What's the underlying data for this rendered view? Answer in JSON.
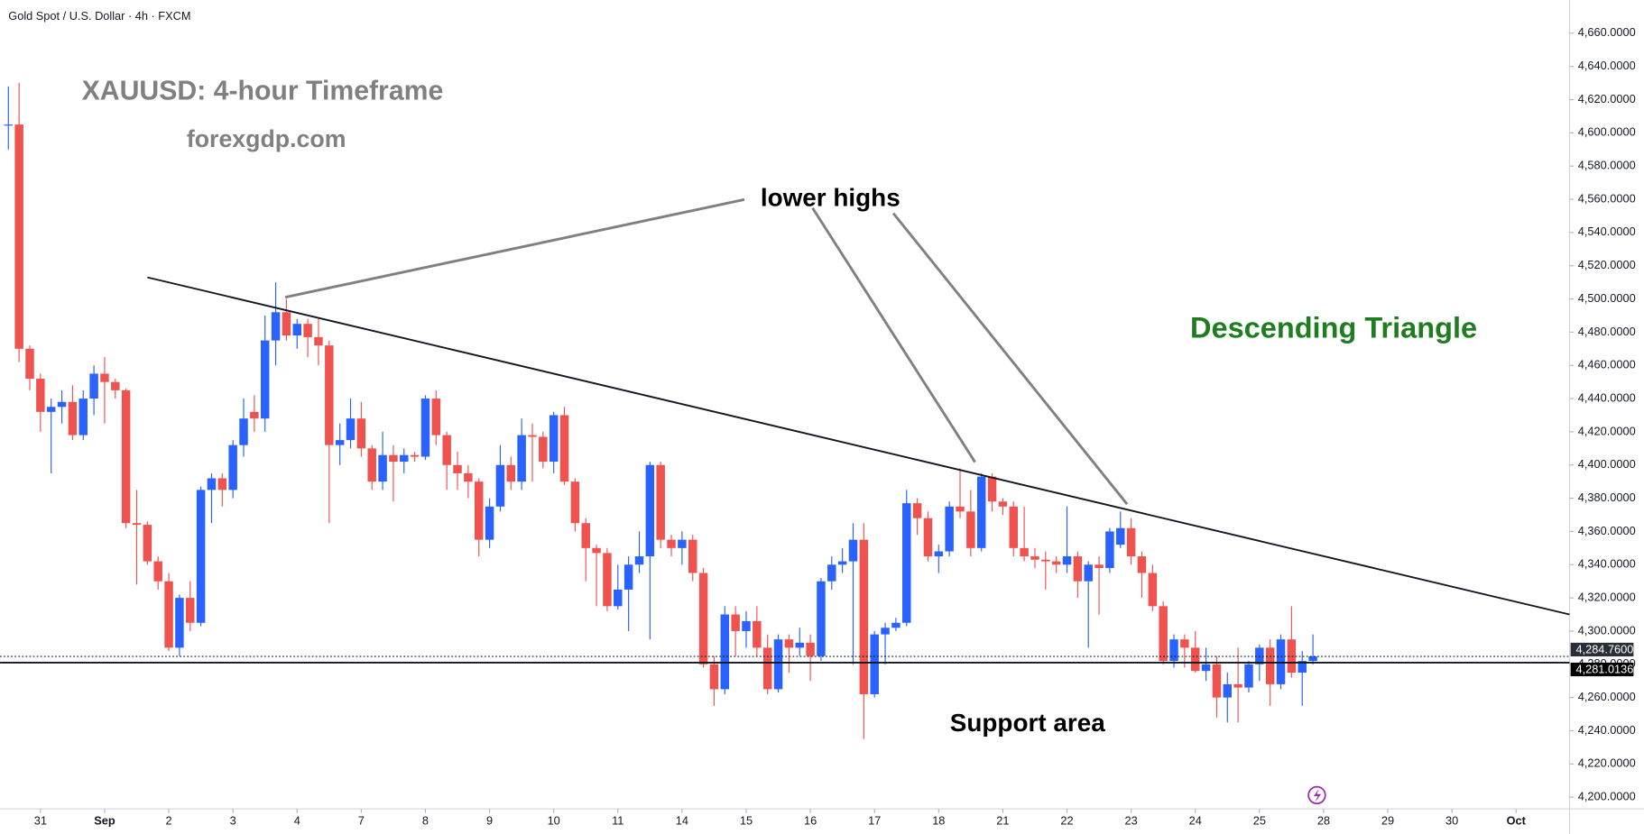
{
  "chart_data": {
    "type": "candlestick",
    "header": "Gold Spot / U.S. Dollar · 4h · FXCM",
    "annotations": [
      "XAUUSD: 4-hour Timeframe",
      "forexgdp.com",
      "lower highs",
      "Descending Triangle",
      "Support area"
    ],
    "up_color": "#2962ff",
    "down_color": "#ef5350",
    "open": [
      4605,
      4605,
      4470,
      4452,
      4432,
      4435,
      4438,
      4418,
      4440,
      4455,
      4450,
      4445,
      4365,
      4364,
      4342,
      4330,
      4290,
      4320,
      4305,
      4385,
      4392,
      4385,
      4412,
      4432,
      4428,
      4475,
      4492,
      4478,
      4485,
      4477,
      4472,
      4412,
      4415,
      4428,
      4410,
      4390,
      4406,
      4402,
      4406,
      4405,
      4440,
      4418,
      4400,
      4395,
      4390,
      4355,
      4375,
      4400,
      4390,
      4418,
      4417,
      4402,
      4430,
      4390,
      4365,
      4350,
      4347,
      4315,
      4325,
      4340,
      4345,
      4400,
      4355,
      4350,
      4355,
      4335,
      4280,
      4265,
      4310,
      4300,
      4306,
      4290,
      4265,
      4295,
      4290,
      4293,
      4285,
      4330,
      4340,
      4342,
      4355,
      4262,
      4298,
      4302,
      4305,
      4377,
      4368,
      4345,
      4348,
      4375,
      4372,
      4350,
      4393,
      4378,
      4375,
      4350,
      4345,
      4343,
      4342,
      4340,
      4345,
      4330,
      4340,
      4338,
      4352,
      4362,
      4345,
      4335,
      4315,
      4282,
      4295,
      4290,
      4276,
      4280,
      4260,
      4268,
      4266,
      4280,
      4290,
      4268,
      4295,
      4275,
      4282
    ],
    "high": [
      4628,
      4630,
      4472,
      4455,
      4440,
      4445,
      4448,
      4445,
      4460,
      4465,
      4452,
      4446,
      4385,
      4366,
      4345,
      4335,
      4322,
      4330,
      4387,
      4395,
      4395,
      4415,
      4440,
      4442,
      4490,
      4510,
      4500,
      4488,
      4488,
      4488,
      4475,
      4425,
      4440,
      4438,
      4412,
      4420,
      4412,
      4410,
      4408,
      4442,
      4445,
      4420,
      4408,
      4400,
      4392,
      4380,
      4412,
      4405,
      4428,
      4425,
      4420,
      4432,
      4435,
      4392,
      4368,
      4352,
      4350,
      4340,
      4345,
      4360,
      4402,
      4402,
      4358,
      4360,
      4358,
      4338,
      4285,
      4315,
      4315,
      4312,
      4315,
      4298,
      4298,
      4298,
      4302,
      4298,
      4332,
      4345,
      4350,
      4365,
      4365,
      4300,
      4305,
      4308,
      4385,
      4380,
      4372,
      4352,
      4378,
      4398,
      4385,
      4395,
      4395,
      4380,
      4378,
      4375,
      4350,
      4348,
      4345,
      4375,
      4348,
      4342,
      4345,
      4362,
      4372,
      4368,
      4348,
      4340,
      4318,
      4298,
      4298,
      4300,
      4290,
      4285,
      4275,
      4290,
      4282,
      4292,
      4295,
      4298,
      4315,
      4288,
      4298
    ],
    "low": [
      4590,
      4462,
      4445,
      4420,
      4395,
      4425,
      4415,
      4415,
      4430,
      4425,
      4440,
      4362,
      4328,
      4340,
      4325,
      4288,
      4285,
      4300,
      4303,
      4365,
      4375,
      4380,
      4405,
      4420,
      4420,
      4460,
      4475,
      4470,
      4465,
      4460,
      4365,
      4400,
      4410,
      4405,
      4385,
      4385,
      4378,
      4395,
      4402,
      4403,
      4412,
      4385,
      4385,
      4380,
      4345,
      4350,
      4372,
      4385,
      4385,
      4390,
      4398,
      4395,
      4388,
      4360,
      4330,
      4315,
      4312,
      4313,
      4300,
      4335,
      4295,
      4350,
      4345,
      4340,
      4330,
      4278,
      4255,
      4262,
      4285,
      4290,
      4285,
      4262,
      4263,
      4275,
      4285,
      4270,
      4282,
      4325,
      4335,
      4280,
      4235,
      4260,
      4280,
      4300,
      4303,
      4358,
      4342,
      4335,
      4345,
      4368,
      4345,
      4348,
      4372,
      4370,
      4345,
      4342,
      4338,
      4325,
      4335,
      4335,
      4320,
      4290,
      4310,
      4335,
      4350,
      4340,
      4320,
      4312,
      4280,
      4278,
      4278,
      4275,
      4270,
      4248,
      4245,
      4245,
      4263,
      4270,
      4255,
      4265,
      4272,
      4255,
      4280
    ],
    "close": [
      4605,
      4470,
      4452,
      4432,
      4435,
      4438,
      4418,
      4440,
      4455,
      4450,
      4445,
      4365,
      4364,
      4342,
      4330,
      4290,
      4320,
      4305,
      4385,
      4392,
      4385,
      4412,
      4428,
      4428,
      4475,
      4492,
      4478,
      4485,
      4477,
      4472,
      4412,
      4415,
      4428,
      4410,
      4390,
      4406,
      4402,
      4406,
      4405,
      4440,
      4418,
      4400,
      4395,
      4390,
      4355,
      4375,
      4400,
      4390,
      4418,
      4417,
      4402,
      4430,
      4390,
      4365,
      4350,
      4347,
      4315,
      4325,
      4340,
      4345,
      4400,
      4355,
      4350,
      4355,
      4335,
      4280,
      4265,
      4310,
      4300,
      4306,
      4290,
      4265,
      4295,
      4290,
      4293,
      4285,
      4330,
      4340,
      4342,
      4355,
      4262,
      4298,
      4302,
      4305,
      4377,
      4368,
      4345,
      4348,
      4375,
      4372,
      4350,
      4393,
      4378,
      4375,
      4350,
      4345,
      4343,
      4342,
      4340,
      4345,
      4330,
      4340,
      4338,
      4360,
      4362,
      4345,
      4335,
      4315,
      4282,
      4295,
      4290,
      4276,
      4280,
      4260,
      4268,
      4266,
      4280,
      4290,
      4268,
      4295,
      4275,
      4282,
      4284.76
    ],
    "xlim": [
      -0.784,
      146
    ],
    "xticks": [
      {
        "value": 3,
        "label": "31"
      },
      {
        "value": 9,
        "label": "Sep"
      },
      {
        "value": 15,
        "label": "2"
      },
      {
        "value": 21,
        "label": "3"
      },
      {
        "value": 27,
        "label": "4"
      },
      {
        "value": 33,
        "label": "7"
      },
      {
        "value": 39,
        "label": "8"
      },
      {
        "value": 45,
        "label": "9"
      },
      {
        "value": 51,
        "label": "10"
      },
      {
        "value": 57,
        "label": "11"
      },
      {
        "value": 63,
        "label": "14"
      },
      {
        "value": 69,
        "label": "15"
      },
      {
        "value": 75,
        "label": "16"
      },
      {
        "value": 81,
        "label": "17"
      },
      {
        "value": 87,
        "label": "18"
      },
      {
        "value": 93,
        "label": "21"
      },
      {
        "value": 99,
        "label": "22"
      },
      {
        "value": 105,
        "label": "23"
      },
      {
        "value": 111,
        "label": "24"
      },
      {
        "value": 117,
        "label": "25"
      },
      {
        "value": 123,
        "label": "28"
      },
      {
        "value": 129,
        "label": "29"
      },
      {
        "value": 135,
        "label": "30"
      },
      {
        "value": 141,
        "label": "Oct"
      }
    ],
    "ylim": [
      4193,
      4680
    ],
    "yticks": [
      {
        "value": 4200,
        "label": "4,200.0000"
      },
      {
        "value": 4220,
        "label": "4,220.0000"
      },
      {
        "value": 4240,
        "label": "4,240.0000"
      },
      {
        "value": 4260,
        "label": "4,260.0000"
      },
      {
        "value": 4280,
        "label": "4,280.0000"
      },
      {
        "value": 4300,
        "label": "4,300.0000"
      },
      {
        "value": 4320,
        "label": "4,320.0000"
      },
      {
        "value": 4340,
        "label": "4,340.0000"
      },
      {
        "value": 4360,
        "label": "4,360.0000"
      },
      {
        "value": 4380,
        "label": "4,380.0000"
      },
      {
        "value": 4400,
        "label": "4,400.0000"
      },
      {
        "value": 4420,
        "label": "4,420.0000"
      },
      {
        "value": 4440,
        "label": "4,440.0000"
      },
      {
        "value": 4460,
        "label": "4,460.0000"
      },
      {
        "value": 4480,
        "label": "4,480.0000"
      },
      {
        "value": 4500,
        "label": "4,500.0000"
      },
      {
        "value": 4520,
        "label": "4,520.0000"
      },
      {
        "value": 4540,
        "label": "4,540.0000"
      },
      {
        "value": 4560,
        "label": "4,560.0000"
      },
      {
        "value": 4580,
        "label": "4,580.0000"
      },
      {
        "value": 4600,
        "label": "4,600.0000"
      },
      {
        "value": 4620,
        "label": "4,620.0000"
      },
      {
        "value": 4640,
        "label": "4,640.0000"
      },
      {
        "value": 4660,
        "label": "4,660.0000"
      }
    ],
    "price_lines": [
      {
        "value": 4284.76,
        "label": "4,284.7600",
        "style": "dotted"
      },
      {
        "value": 4281.0136,
        "label": "4,281.0136",
        "style": "solid"
      }
    ],
    "trendline": {
      "x": [
        13,
        146
      ],
      "y": [
        4513,
        4310
      ]
    }
  }
}
